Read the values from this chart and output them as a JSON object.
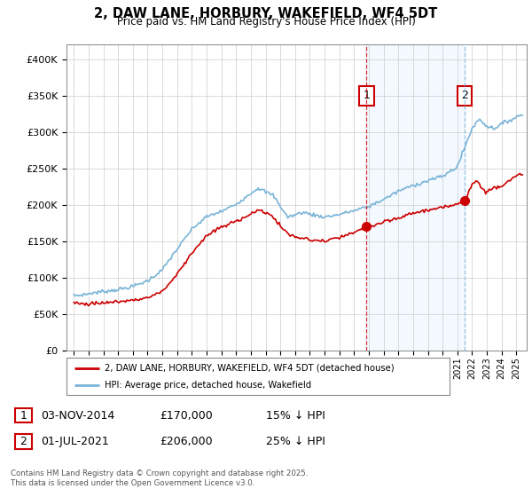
{
  "title": "2, DAW LANE, HORBURY, WAKEFIELD, WF4 5DT",
  "subtitle": "Price paid vs. HM Land Registry's House Price Index (HPI)",
  "hpi_color": "#7ab4d8",
  "price_color": "#cc0000",
  "marker1_x": 2014.84,
  "marker2_x": 2021.5,
  "marker1_vline_color": "#cc0000",
  "marker2_vline_color": "#7ab4d8",
  "marker1_label": "1",
  "marker2_label": "2",
  "marker1_price_y": 170000,
  "marker2_price_y": 206000,
  "marker1_date": "03-NOV-2014",
  "marker1_price": "£170,000",
  "marker1_hpi": "15% ↓ HPI",
  "marker2_date": "01-JUL-2021",
  "marker2_price": "£206,000",
  "marker2_hpi": "25% ↓ HPI",
  "legend_line1": "2, DAW LANE, HORBURY, WAKEFIELD, WF4 5DT (detached house)",
  "legend_line2": "HPI: Average price, detached house, Wakefield",
  "footer": "Contains HM Land Registry data © Crown copyright and database right 2025.\nThis data is licensed under the Open Government Licence v3.0.",
  "ylim": [
    0,
    420000
  ],
  "xlim_start": 1994.5,
  "xlim_end": 2025.7,
  "shade_color": "#ddeeff",
  "box_edge_color": "#cc0000",
  "box2_edge_color": "#000000"
}
